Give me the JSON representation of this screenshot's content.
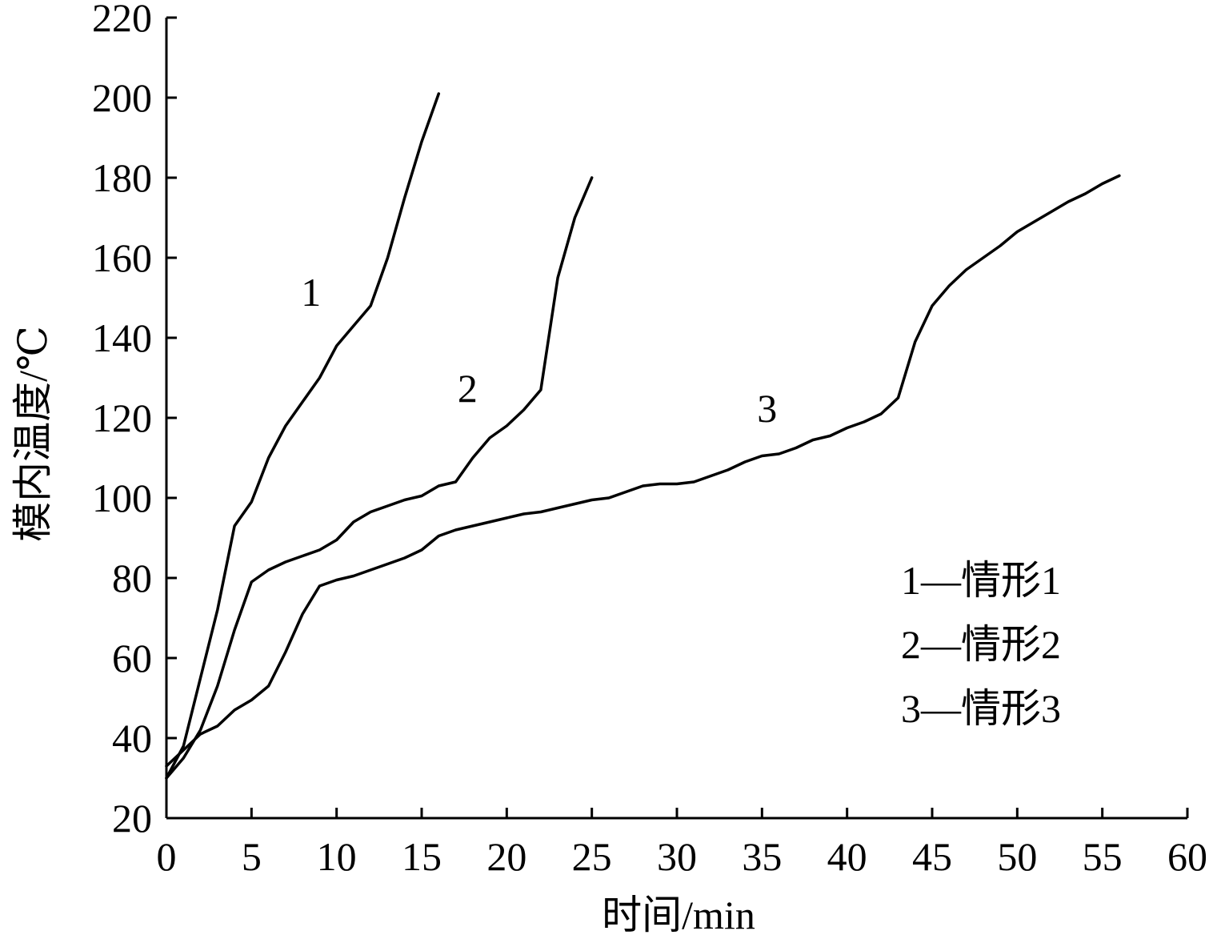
{
  "chart_data": {
    "type": "line",
    "title": "",
    "xlabel": "时间/min",
    "ylabel": "模内温度/℃",
    "xlim": [
      0,
      60
    ],
    "ylim": [
      20,
      220
    ],
    "xticks": [
      0,
      5,
      10,
      15,
      20,
      25,
      30,
      35,
      40,
      45,
      50,
      55,
      60
    ],
    "yticks": [
      20,
      40,
      60,
      80,
      100,
      120,
      140,
      160,
      180,
      200,
      220
    ],
    "grid": false,
    "legend_placement": "lower-right",
    "legend": [
      "1—情形1",
      "2—情形2",
      "3—情形3"
    ],
    "series": [
      {
        "curve_label": "1",
        "label_at": [
          8.5,
          148
        ],
        "x": [
          0,
          1,
          2,
          3,
          4,
          5,
          6,
          7,
          8,
          9,
          10,
          11,
          12,
          13,
          14,
          15,
          16
        ],
        "y": [
          30,
          38,
          55,
          72,
          93,
          99,
          110,
          118,
          124,
          130,
          138,
          143,
          148,
          160,
          175,
          189,
          201
        ]
      },
      {
        "curve_label": "2",
        "label_at": [
          17.7,
          124
        ],
        "x": [
          0,
          1,
          2,
          3,
          4,
          5,
          6,
          7,
          8,
          9,
          10,
          11,
          12,
          13,
          14,
          15,
          16,
          17,
          18,
          19,
          20,
          21,
          22,
          23,
          24,
          25
        ],
        "y": [
          30,
          35,
          42,
          53,
          67,
          79,
          82,
          84,
          85.5,
          87,
          89.5,
          94,
          96.5,
          98,
          99.5,
          100.5,
          103,
          104,
          110,
          115,
          118,
          122,
          127,
          155,
          170,
          180
        ]
      },
      {
        "curve_label": "3",
        "label_at": [
          35.3,
          119
        ],
        "x": [
          0,
          1,
          2,
          3,
          4,
          5,
          6,
          7,
          8,
          9,
          10,
          11,
          12,
          13,
          14,
          15,
          16,
          17,
          18,
          19,
          20,
          21,
          22,
          23,
          24,
          25,
          26,
          27,
          28,
          29,
          30,
          31,
          32,
          33,
          34,
          35,
          36,
          37,
          38,
          39,
          40,
          41,
          42,
          43,
          44,
          45,
          46,
          47,
          48,
          49,
          50,
          51,
          52,
          53,
          54,
          55,
          56
        ],
        "y": [
          33,
          37,
          41,
          43,
          47,
          49.5,
          53,
          61.5,
          71,
          78,
          79.5,
          80.5,
          82,
          83.5,
          85,
          87,
          90.5,
          92,
          93,
          94,
          95,
          96,
          96.5,
          97.5,
          98.5,
          99.5,
          100,
          101.5,
          103,
          103.5,
          103.5,
          104,
          105.5,
          107,
          109,
          110.5,
          111,
          112.5,
          114.5,
          115.5,
          117.5,
          119,
          121,
          125,
          139,
          148,
          153,
          157,
          160,
          163,
          166.5,
          169,
          171.5,
          174,
          176,
          178.5,
          180.5
        ]
      }
    ]
  }
}
